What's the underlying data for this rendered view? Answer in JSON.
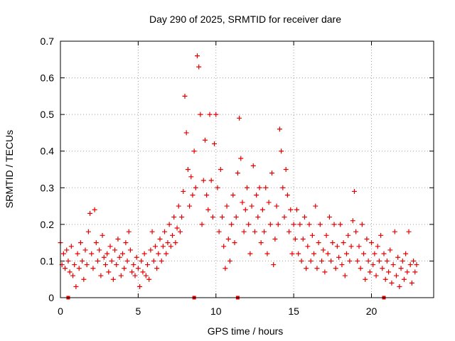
{
  "chart_data": {
    "type": "scatter",
    "title": "Day 290 of 2025, SRMTID for receiver dare",
    "xlabel": "GPS time / hours",
    "ylabel": "SRMTID / TECUs",
    "xlim": [
      0,
      24
    ],
    "ylim": [
      0,
      0.7
    ],
    "xticks": [
      0,
      5,
      10,
      15,
      20
    ],
    "yticks": [
      0,
      0.1,
      0.2,
      0.3,
      0.4,
      0.5,
      0.6,
      0.7
    ],
    "x_tick_labels": [
      "0",
      "5",
      "10",
      "15",
      "20"
    ],
    "y_tick_labels": [
      "0",
      "0.1",
      "0.2",
      "0.3",
      "0.4",
      "0.5",
      "0.6",
      "0.7"
    ],
    "grid": true,
    "marker": "plus",
    "color": "#e60000",
    "series": [
      {
        "name": "SRMTID",
        "points": [
          [
            0.0,
            0.15
          ],
          [
            0.1,
            0.09
          ],
          [
            0.2,
            0.12
          ],
          [
            0.3,
            0.08
          ],
          [
            0.4,
            0.13
          ],
          [
            0.5,
            0.1
          ],
          [
            0.6,
            0.07
          ],
          [
            0.7,
            0.14
          ],
          [
            0.8,
            0.06
          ],
          [
            0.9,
            0.09
          ],
          [
            1.0,
            0.03
          ],
          [
            1.1,
            0.12
          ],
          [
            1.2,
            0.08
          ],
          [
            1.3,
            0.15
          ],
          [
            1.4,
            0.1
          ],
          [
            1.5,
            0.05
          ],
          [
            1.6,
            0.13
          ],
          [
            1.7,
            0.09
          ],
          [
            1.8,
            0.18
          ],
          [
            1.9,
            0.23
          ],
          [
            2.0,
            0.12
          ],
          [
            2.1,
            0.08
          ],
          [
            2.2,
            0.24
          ],
          [
            2.3,
            0.15
          ],
          [
            2.4,
            0.1
          ],
          [
            2.5,
            0.13
          ],
          [
            2.6,
            0.06
          ],
          [
            2.7,
            0.17
          ],
          [
            2.8,
            0.11
          ],
          [
            2.9,
            0.09
          ],
          [
            3.0,
            0.12
          ],
          [
            3.1,
            0.07
          ],
          [
            3.2,
            0.14
          ],
          [
            3.3,
            0.1
          ],
          [
            3.4,
            0.05
          ],
          [
            3.5,
            0.13
          ],
          [
            3.6,
            0.09
          ],
          [
            3.7,
            0.16
          ],
          [
            3.8,
            0.11
          ],
          [
            3.9,
            0.06
          ],
          [
            4.0,
            0.12
          ],
          [
            4.1,
            0.08
          ],
          [
            4.2,
            0.15
          ],
          [
            4.3,
            0.1
          ],
          [
            4.4,
            0.18
          ],
          [
            4.5,
            0.13
          ],
          [
            4.6,
            0.07
          ],
          [
            4.7,
            0.09
          ],
          [
            4.8,
            0.06
          ],
          [
            4.9,
            0.11
          ],
          [
            5.0,
            0.08
          ],
          [
            5.1,
            0.03
          ],
          [
            5.2,
            0.1
          ],
          [
            5.3,
            0.07
          ],
          [
            5.4,
            0.12
          ],
          [
            5.5,
            0.06
          ],
          [
            5.6,
            0.09
          ],
          [
            5.7,
            0.05
          ],
          [
            5.8,
            0.13
          ],
          [
            5.9,
            0.18
          ],
          [
            6.0,
            0.1
          ],
          [
            6.1,
            0.14
          ],
          [
            6.2,
            0.08
          ],
          [
            6.3,
            0.12
          ],
          [
            6.4,
            0.16
          ],
          [
            6.5,
            0.1
          ],
          [
            6.6,
            0.14
          ],
          [
            6.7,
            0.18
          ],
          [
            6.8,
            0.12
          ],
          [
            6.9,
            0.15
          ],
          [
            7.0,
            0.2
          ],
          [
            7.1,
            0.14
          ],
          [
            7.2,
            0.17
          ],
          [
            7.3,
            0.22
          ],
          [
            7.4,
            0.15
          ],
          [
            7.5,
            0.19
          ],
          [
            7.6,
            0.25
          ],
          [
            7.7,
            0.18
          ],
          [
            7.8,
            0.22
          ],
          [
            7.9,
            0.29
          ],
          [
            8.0,
            0.55
          ],
          [
            8.1,
            0.45
          ],
          [
            8.2,
            0.35
          ],
          [
            8.3,
            0.25
          ],
          [
            8.4,
            0.33
          ],
          [
            8.5,
            0.28
          ],
          [
            8.6,
            0.4
          ],
          [
            8.7,
            0.3
          ],
          [
            8.8,
            0.66
          ],
          [
            8.9,
            0.63
          ],
          [
            9.0,
            0.5
          ],
          [
            9.1,
            0.2
          ],
          [
            9.2,
            0.32
          ],
          [
            9.3,
            0.43
          ],
          [
            9.4,
            0.28
          ],
          [
            9.5,
            0.24
          ],
          [
            9.6,
            0.5
          ],
          [
            9.7,
            0.32
          ],
          [
            9.8,
            0.22
          ],
          [
            9.9,
            0.42
          ],
          [
            10.0,
            0.5
          ],
          [
            10.1,
            0.3
          ],
          [
            10.2,
            0.18
          ],
          [
            10.3,
            0.35
          ],
          [
            10.4,
            0.22
          ],
          [
            10.5,
            0.14
          ],
          [
            10.6,
            0.08
          ],
          [
            10.7,
            0.25
          ],
          [
            10.8,
            0.16
          ],
          [
            10.9,
            0.1
          ],
          [
            11.0,
            0.2
          ],
          [
            11.1,
            0.28
          ],
          [
            11.2,
            0.15
          ],
          [
            11.3,
            0.22
          ],
          [
            11.4,
            0.34
          ],
          [
            11.5,
            0.49
          ],
          [
            11.6,
            0.38
          ],
          [
            11.7,
            0.26
          ],
          [
            11.8,
            0.18
          ],
          [
            11.9,
            0.24
          ],
          [
            12.0,
            0.3
          ],
          [
            12.1,
            0.2
          ],
          [
            12.2,
            0.12
          ],
          [
            12.3,
            0.25
          ],
          [
            12.4,
            0.36
          ],
          [
            12.5,
            0.18
          ],
          [
            12.6,
            0.28
          ],
          [
            12.7,
            0.22
          ],
          [
            12.8,
            0.3
          ],
          [
            12.9,
            0.15
          ],
          [
            13.0,
            0.24
          ],
          [
            13.1,
            0.18
          ],
          [
            13.2,
            0.3
          ],
          [
            13.3,
            0.12
          ],
          [
            13.4,
            0.26
          ],
          [
            13.5,
            0.2
          ],
          [
            13.6,
            0.34
          ],
          [
            13.7,
            0.09
          ],
          [
            13.8,
            0.16
          ],
          [
            13.9,
            0.25
          ],
          [
            14.0,
            0.2
          ],
          [
            14.1,
            0.46
          ],
          [
            14.2,
            0.4
          ],
          [
            14.3,
            0.3
          ],
          [
            14.4,
            0.22
          ],
          [
            14.5,
            0.35
          ],
          [
            14.6,
            0.28
          ],
          [
            14.7,
            0.18
          ],
          [
            14.8,
            0.24
          ],
          [
            14.9,
            0.12
          ],
          [
            15.0,
            0.2
          ],
          [
            15.1,
            0.16
          ],
          [
            15.2,
            0.24
          ],
          [
            15.3,
            0.12
          ],
          [
            15.4,
            0.2
          ],
          [
            15.5,
            0.1
          ],
          [
            15.6,
            0.16
          ],
          [
            15.7,
            0.22
          ],
          [
            15.8,
            0.08
          ],
          [
            15.9,
            0.14
          ],
          [
            16.0,
            0.2
          ],
          [
            16.1,
            0.1
          ],
          [
            16.2,
            0.17
          ],
          [
            16.3,
            0.12
          ],
          [
            16.4,
            0.25
          ],
          [
            16.5,
            0.08
          ],
          [
            16.6,
            0.15
          ],
          [
            16.7,
            0.2
          ],
          [
            16.8,
            0.1
          ],
          [
            16.9,
            0.13
          ],
          [
            17.0,
            0.07
          ],
          [
            17.1,
            0.17
          ],
          [
            17.2,
            0.12
          ],
          [
            17.3,
            0.22
          ],
          [
            17.4,
            0.1
          ],
          [
            17.5,
            0.15
          ],
          [
            17.6,
            0.2
          ],
          [
            17.7,
            0.08
          ],
          [
            17.8,
            0.14
          ],
          [
            17.9,
            0.11
          ],
          [
            18.0,
            0.2
          ],
          [
            18.1,
            0.09
          ],
          [
            18.2,
            0.15
          ],
          [
            18.3,
            0.06
          ],
          [
            18.4,
            0.12
          ],
          [
            18.5,
            0.17
          ],
          [
            18.6,
            0.1
          ],
          [
            18.7,
            0.14
          ],
          [
            18.8,
            0.21
          ],
          [
            18.9,
            0.29
          ],
          [
            19.0,
            0.18
          ],
          [
            19.1,
            0.1
          ],
          [
            19.2,
            0.14
          ],
          [
            19.3,
            0.08
          ],
          [
            19.4,
            0.2
          ],
          [
            19.5,
            0.12
          ],
          [
            19.6,
            0.05
          ],
          [
            19.7,
            0.16
          ],
          [
            19.8,
            0.1
          ],
          [
            19.9,
            0.07
          ],
          [
            20.0,
            0.15
          ],
          [
            20.1,
            0.09
          ],
          [
            20.2,
            0.12
          ],
          [
            20.3,
            0.06
          ],
          [
            20.4,
            0.14
          ],
          [
            20.5,
            0.1
          ],
          [
            20.6,
            0.17
          ],
          [
            20.7,
            0.08
          ],
          [
            20.8,
            0.12
          ],
          [
            20.9,
            0.05
          ],
          [
            21.0,
            0.1
          ],
          [
            21.1,
            0.07
          ],
          [
            21.2,
            0.13
          ],
          [
            21.3,
            0.04
          ],
          [
            21.4,
            0.09
          ],
          [
            21.5,
            0.18
          ],
          [
            21.6,
            0.06
          ],
          [
            21.7,
            0.11
          ],
          [
            21.8,
            0.03
          ],
          [
            21.9,
            0.08
          ],
          [
            22.0,
            0.1
          ],
          [
            22.1,
            0.05
          ],
          [
            22.2,
            0.12
          ],
          [
            22.3,
            0.07
          ],
          [
            22.4,
            0.18
          ],
          [
            22.5,
            0.09
          ],
          [
            22.6,
            0.04
          ],
          [
            22.7,
            0.1
          ],
          [
            22.8,
            0.07
          ],
          [
            22.9,
            0.09
          ]
        ]
      }
    ],
    "gap_markers_x": [
      0.5,
      8.6,
      11.4,
      20.8
    ]
  }
}
